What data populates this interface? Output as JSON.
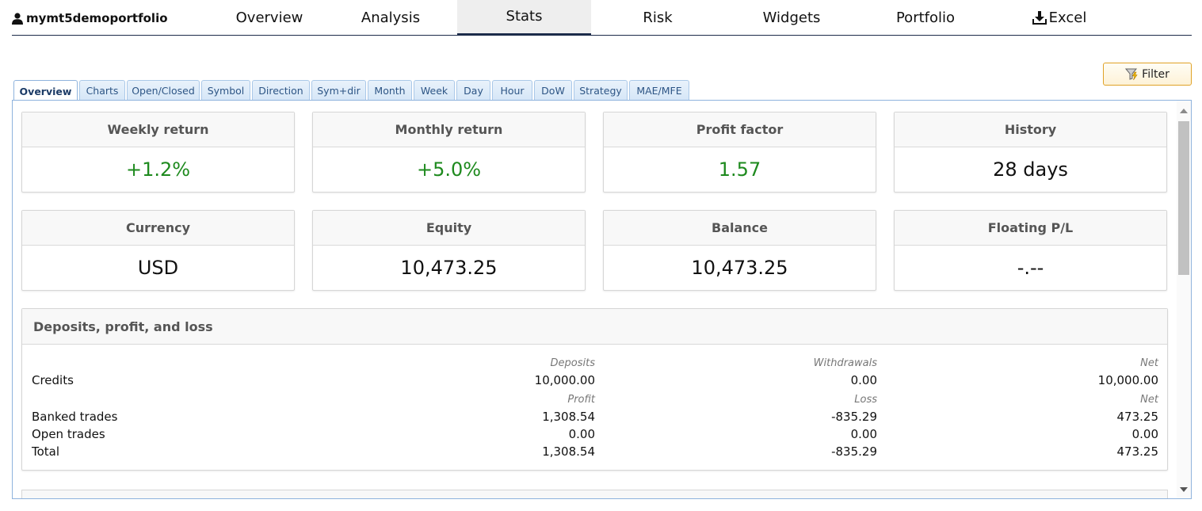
{
  "account": {
    "name": "mymt5demoportfolio",
    "icon": "user-icon"
  },
  "nav": {
    "tabs": [
      {
        "label": "Overview"
      },
      {
        "label": "Analysis"
      },
      {
        "label": "Stats",
        "active": true
      },
      {
        "label": "Risk"
      },
      {
        "label": "Widgets"
      },
      {
        "label": "Portfolio"
      },
      {
        "label": "Excel",
        "icon": "download-icon"
      }
    ]
  },
  "filter": {
    "label": "Filter",
    "icon": "filter-icon"
  },
  "subtabs": [
    {
      "label": "Overview",
      "active": true
    },
    {
      "label": "Charts"
    },
    {
      "label": "Open/Closed"
    },
    {
      "label": "Symbol"
    },
    {
      "label": "Direction"
    },
    {
      "label": "Sym+dir"
    },
    {
      "label": "Month"
    },
    {
      "label": "Week"
    },
    {
      "label": "Day"
    },
    {
      "label": "Hour"
    },
    {
      "label": "DoW"
    },
    {
      "label": "Strategy"
    },
    {
      "label": "MAE/MFE"
    }
  ],
  "cards": [
    {
      "title": "Weekly return",
      "value": "+1.2%",
      "tone": "positive"
    },
    {
      "title": "Monthly return",
      "value": "+5.0%",
      "tone": "positive"
    },
    {
      "title": "Profit factor",
      "value": "1.57",
      "tone": "positive"
    },
    {
      "title": "History",
      "value": "28 days",
      "tone": "neutral"
    },
    {
      "title": "Currency",
      "value": "USD",
      "tone": "neutral"
    },
    {
      "title": "Equity",
      "value": "10,473.25",
      "tone": "neutral"
    },
    {
      "title": "Balance",
      "value": "10,473.25",
      "tone": "neutral"
    },
    {
      "title": "Floating P/L",
      "value": "-.--",
      "tone": "neutral"
    }
  ],
  "dpl": {
    "title": "Deposits, profit, and loss",
    "credits_header": {
      "c1": "Deposits",
      "c2": "Withdrawals",
      "c3": "Net"
    },
    "credits": {
      "label": "Credits",
      "c1": "10,000.00",
      "c2": "0.00",
      "c3": "10,000.00"
    },
    "trades_header": {
      "c1": "Profit",
      "c2": "Loss",
      "c3": "Net"
    },
    "banked": {
      "label": "Banked trades",
      "c1": "1,308.54",
      "c2": "-835.29",
      "c3": "473.25"
    },
    "open": {
      "label": "Open trades",
      "c1": "0.00",
      "c2": "0.00",
      "c3": "0.00"
    },
    "total": {
      "label": "Total",
      "c1": "1,308.54",
      "c2": "-835.29",
      "c3": "473.25"
    }
  },
  "colors": {
    "positive": "#1e8a1e",
    "nav_underline": "#1c2b4a",
    "tab_border": "#8fb3dd",
    "filter_border": "#e0a227"
  }
}
